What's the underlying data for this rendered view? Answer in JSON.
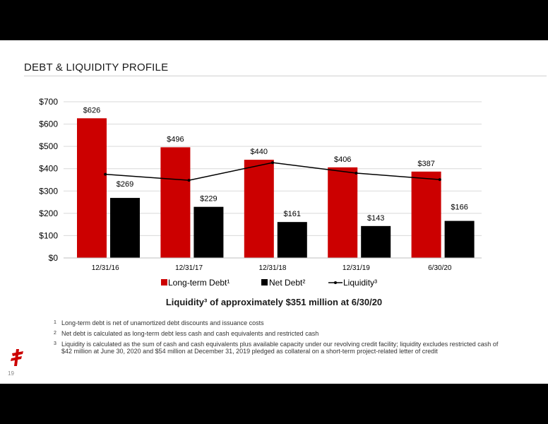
{
  "slide": {
    "title": "DEBT & LIQUIDITY PROFILE",
    "subtitle": "Liquidity³ of approximately $351 million at 6/30/20",
    "page_number": "19",
    "footnotes": [
      {
        "num": "1",
        "text": "Long-term debt is net of unamortized debt discounts and issuance costs"
      },
      {
        "num": "2",
        "text": "Net debt is calculated as long-term debt less cash and cash equivalents and restricted cash"
      },
      {
        "num": "3",
        "text": "Liquidity is calculated as the sum of cash and cash equivalents plus available capacity under our revolving credit facility; liquidity excludes restricted cash of $42 million at June 30, 2020 and $54 million at December 31, 2019 pledged as collateral on a short-term project-related letter of credit"
      }
    ]
  },
  "colors": {
    "long_term_debt": "#cc0000",
    "net_debt": "#000000",
    "liquidity": "#000000",
    "grid": "#d9d9d9"
  },
  "chart_data": {
    "type": "bar",
    "categories": [
      "12/31/16",
      "12/31/17",
      "12/31/18",
      "12/31/19",
      "6/30/20"
    ],
    "series": [
      {
        "name": "Long-term Debt¹",
        "type": "bar",
        "values": [
          626,
          496,
          440,
          406,
          387
        ],
        "labels": [
          "$626",
          "$496",
          "$440",
          "$406",
          "$387"
        ]
      },
      {
        "name": "Net Debt²",
        "type": "bar",
        "values": [
          269,
          229,
          161,
          143,
          166
        ],
        "labels": [
          "$269",
          "$229",
          "$161",
          "$143",
          "$166"
        ]
      },
      {
        "name": "Liquidity³",
        "type": "line",
        "values": [
          375,
          348,
          427,
          380,
          351
        ]
      }
    ],
    "yticks": [
      "$0",
      "$100",
      "$200",
      "$300",
      "$400",
      "$500",
      "$600",
      "$700"
    ],
    "ylim": [
      0,
      700
    ],
    "grid": true,
    "legend": "bottom"
  }
}
